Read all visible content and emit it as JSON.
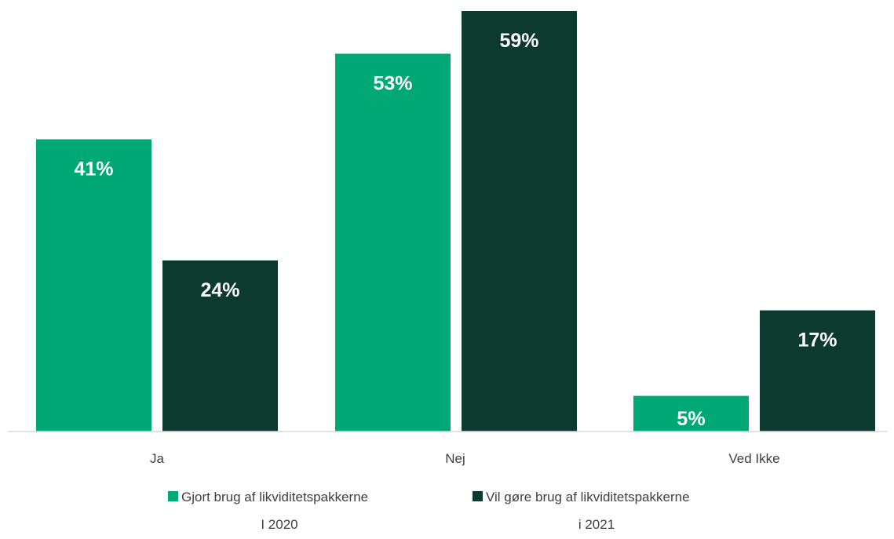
{
  "chart_data": {
    "type": "bar",
    "categories": [
      "Ja",
      "Nej",
      "Ved Ikke"
    ],
    "series": [
      {
        "name": "Gjort brug af likviditetspakkerne",
        "name_line2": "I 2020",
        "values": [
          41,
          53,
          5
        ],
        "labels": [
          "41%",
          "53%",
          "5%"
        ],
        "color": "#00a876"
      },
      {
        "name": "Vil gøre brug af likviditetspakkerne",
        "name_line2": "i 2021",
        "values": [
          24,
          59,
          17
        ],
        "labels": [
          "24%",
          "59%",
          "17%"
        ],
        "color": "#0d3a2f"
      }
    ],
    "ylim": [
      0,
      59
    ],
    "unit": "%",
    "grid": false,
    "legend_position": "bottom",
    "axis_color": "#d9d9d9"
  }
}
